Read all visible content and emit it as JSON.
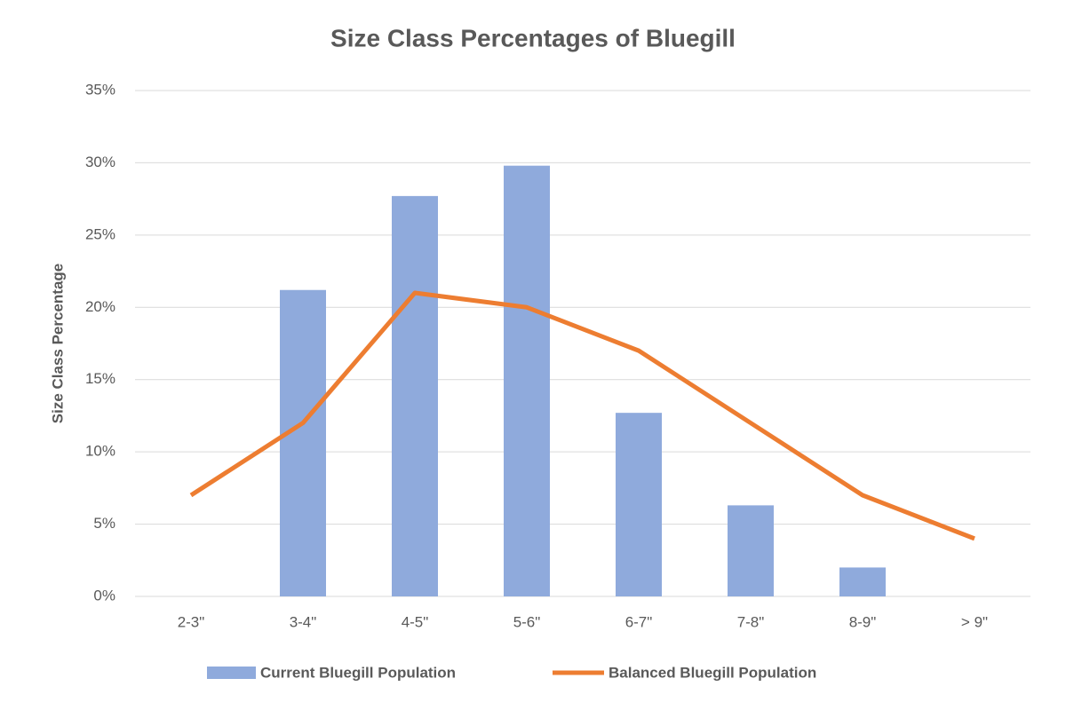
{
  "chart_data": {
    "type": "combo",
    "title": "Size Class Percentages of Bluegill",
    "y_label": "Size Class Percentage",
    "categories": [
      "2-3\"",
      "3-4\"",
      "4-5\"",
      "5-6\"",
      "6-7\"",
      "7-8\"",
      "8-9\"",
      "> 9\""
    ],
    "series": [
      {
        "name": "Current Bluegill Population",
        "type": "bar",
        "color": "#8faadc",
        "values": [
          0,
          21.2,
          27.7,
          29.8,
          12.7,
          6.3,
          2.0,
          0
        ]
      },
      {
        "name": "Balanced Bluegill Population",
        "type": "line",
        "color": "#ed7d31",
        "values": [
          7,
          12,
          21,
          20,
          17,
          12,
          7,
          4
        ]
      }
    ],
    "ylim": [
      0,
      35
    ],
    "yticks": [
      {
        "value": 0,
        "label": "0%"
      },
      {
        "value": 5,
        "label": "5%"
      },
      {
        "value": 10,
        "label": "10%"
      },
      {
        "value": 15,
        "label": "15%"
      },
      {
        "value": 20,
        "label": "20%"
      },
      {
        "value": 25,
        "label": "25%"
      },
      {
        "value": 30,
        "label": "30%"
      },
      {
        "value": 35,
        "label": "35%"
      }
    ],
    "grid": true,
    "legend": "bottom"
  }
}
